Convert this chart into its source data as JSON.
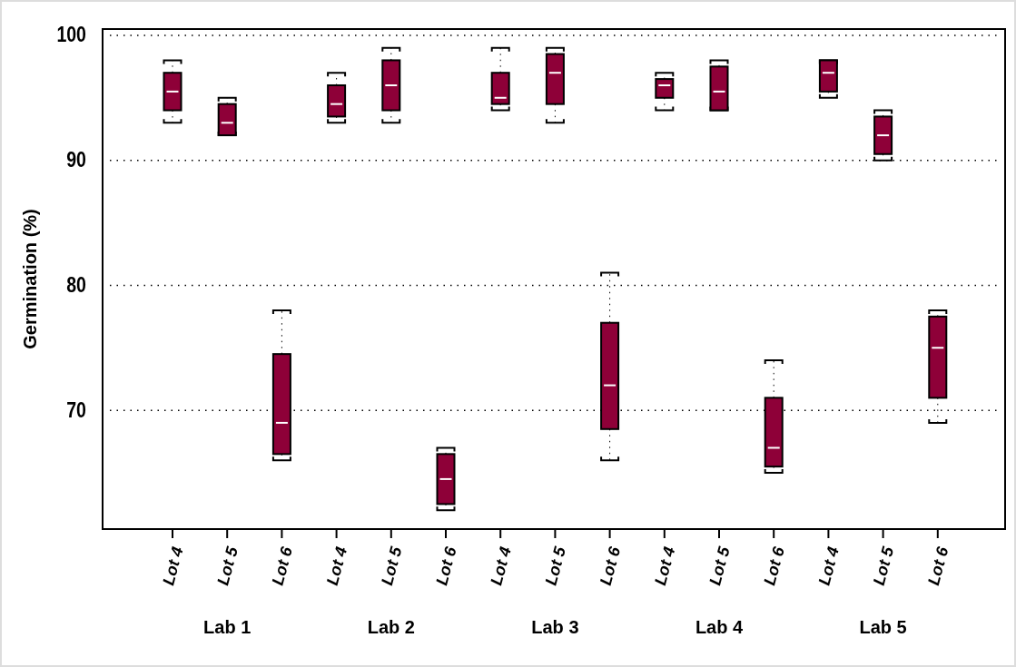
{
  "chart_data": {
    "type": "box",
    "ylabel": "Germination (%)",
    "categories": [
      "Lot 4",
      "Lot 5",
      "Lot 6",
      "Lot 4",
      "Lot 5",
      "Lot 6",
      "Lot 4",
      "Lot 5",
      "Lot 6",
      "Lot 4",
      "Lot 5",
      "Lot 6",
      "Lot 4",
      "Lot 5",
      "Lot 6"
    ],
    "annotations": [
      "Lab 1",
      "Lab 2",
      "Lab 3",
      "Lab 4",
      "Lab 5"
    ],
    "color": "#8e0038",
    "boxes": [
      {
        "low": 93.0,
        "q1": 94.0,
        "median": 95.5,
        "q3": 97.0,
        "high": 98.0
      },
      {
        "low": 92.0,
        "q1": 92.0,
        "median": 93.0,
        "q3": 94.5,
        "high": 95.0
      },
      {
        "low": 66.0,
        "q1": 66.5,
        "median": 69.0,
        "q3": 74.5,
        "high": 78.0
      },
      {
        "low": 93.0,
        "q1": 93.5,
        "median": 94.5,
        "q3": 96.0,
        "high": 97.0
      },
      {
        "low": 93.0,
        "q1": 94.0,
        "median": 96.0,
        "q3": 98.0,
        "high": 99.0
      },
      {
        "low": 62.0,
        "q1": 62.5,
        "median": 64.5,
        "q3": 66.5,
        "high": 67.0
      },
      {
        "low": 94.0,
        "q1": 94.5,
        "median": 95.0,
        "q3": 97.0,
        "high": 99.0
      },
      {
        "low": 93.0,
        "q1": 94.5,
        "median": 97.0,
        "q3": 98.5,
        "high": 99.0
      },
      {
        "low": 66.0,
        "q1": 68.5,
        "median": 72.0,
        "q3": 77.0,
        "high": 81.0
      },
      {
        "low": 94.0,
        "q1": 95.0,
        "median": 96.0,
        "q3": 96.5,
        "high": 97.0
      },
      {
        "low": 94.0,
        "q1": 94.0,
        "median": 95.5,
        "q3": 97.5,
        "high": 98.0
      },
      {
        "low": 65.0,
        "q1": 65.5,
        "median": 67.0,
        "q3": 71.0,
        "high": 74.0
      },
      {
        "low": 95.0,
        "q1": 95.5,
        "median": 97.0,
        "q3": 98.0,
        "high": 98.0
      },
      {
        "low": 90.0,
        "q1": 90.5,
        "median": 92.0,
        "q3": 93.5,
        "high": 94.0
      },
      {
        "low": 69.0,
        "q1": 71.0,
        "median": 75.0,
        "q3": 77.5,
        "high": 78.0
      }
    ],
    "ylim": [
      60.5,
      100.5
    ],
    "yticks": [
      70,
      80,
      90,
      100
    ],
    "grid": "y"
  }
}
